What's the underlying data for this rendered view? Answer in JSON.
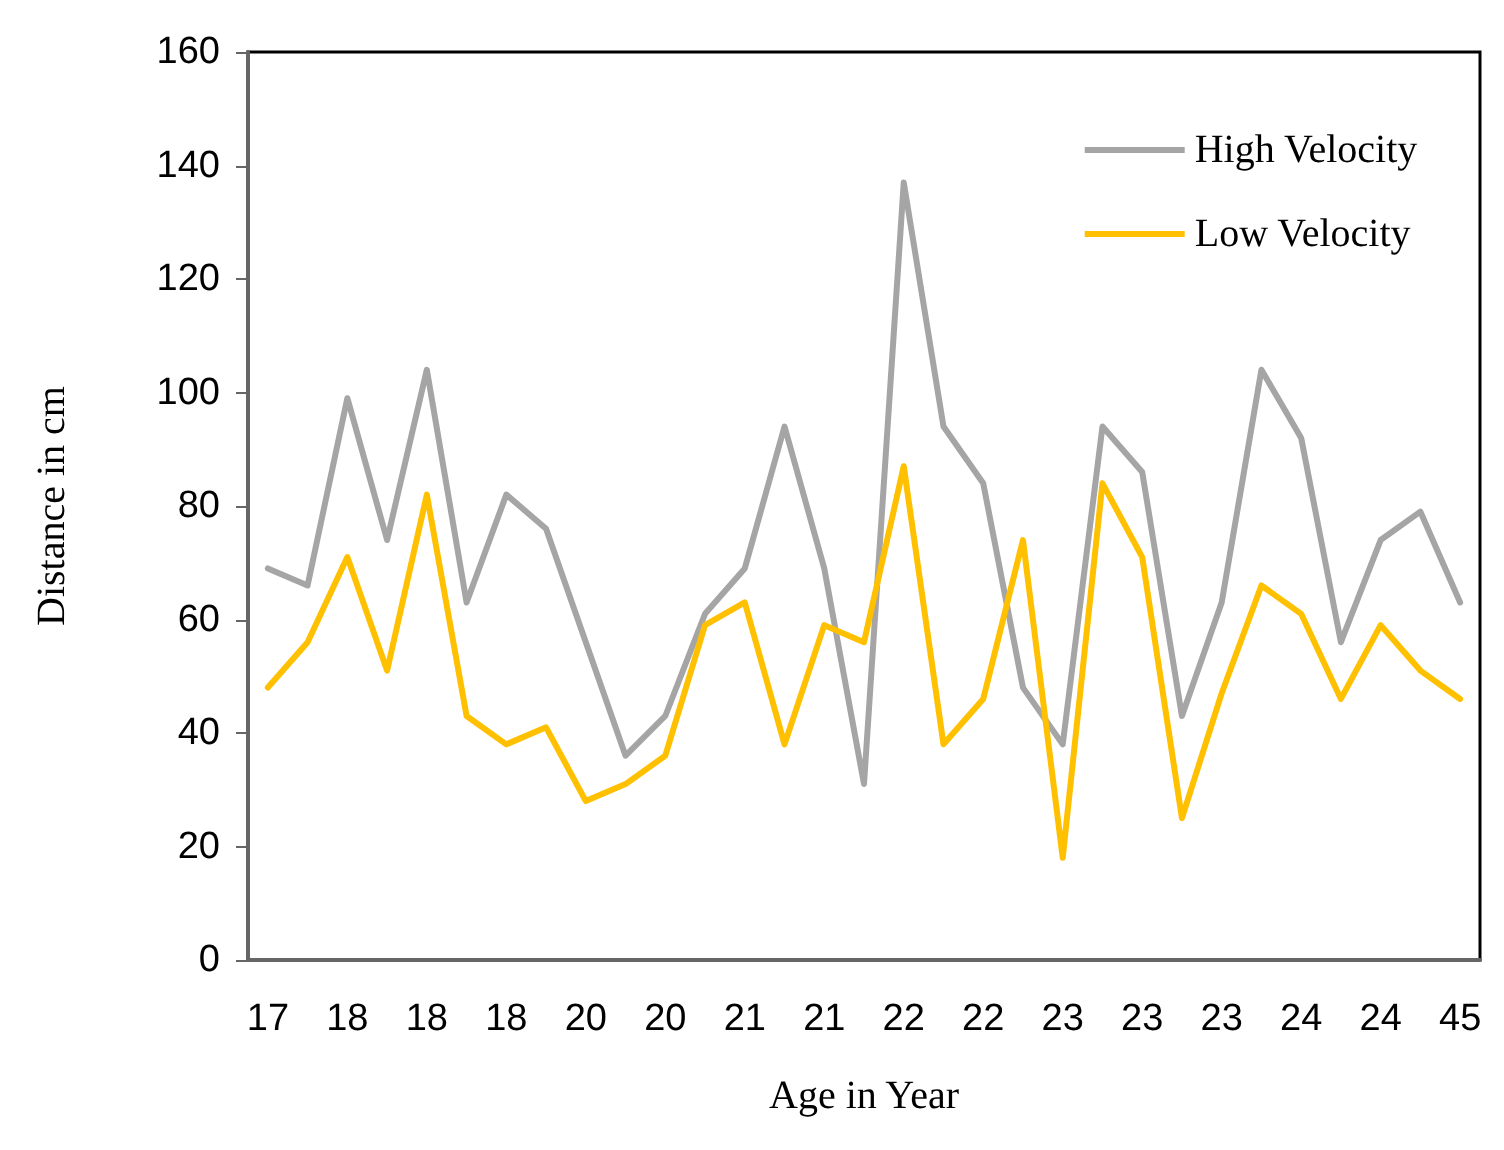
{
  "chart_data": {
    "type": "line",
    "xlabel": "Age in Year",
    "ylabel": "Distance in cm",
    "categories": [
      "17",
      null,
      "18",
      null,
      "18",
      null,
      "18",
      null,
      "20",
      null,
      "20",
      null,
      "21",
      null,
      "21",
      null,
      "22",
      null,
      "22",
      null,
      "23",
      null,
      "23",
      null,
      "23",
      null,
      "24",
      null,
      "24",
      null,
      "45"
    ],
    "series": [
      {
        "name": "High Velocity",
        "color": "#a5a5a5",
        "values": [
          69,
          66,
          99,
          74,
          104,
          63,
          82,
          76,
          56,
          36,
          43,
          61,
          69,
          94,
          69,
          31,
          137,
          94,
          84,
          48,
          38,
          94,
          86,
          43,
          63,
          104,
          92,
          56,
          74,
          79,
          63
        ]
      },
      {
        "name": "Low Velocity",
        "color": "#ffc000",
        "values": [
          48,
          56,
          71,
          51,
          82,
          43,
          38,
          41,
          28,
          31,
          36,
          59,
          63,
          38,
          59,
          56,
          87,
          38,
          46,
          74,
          18,
          84,
          71,
          25,
          47,
          66,
          61,
          46,
          59,
          51,
          46
        ]
      }
    ],
    "ylim": [
      0,
      160
    ],
    "yticks": [
      0,
      20,
      40,
      60,
      80,
      100,
      120,
      140,
      160
    ],
    "grid": false,
    "legend": "top right",
    "marker": "none",
    "line_style": "solid"
  }
}
